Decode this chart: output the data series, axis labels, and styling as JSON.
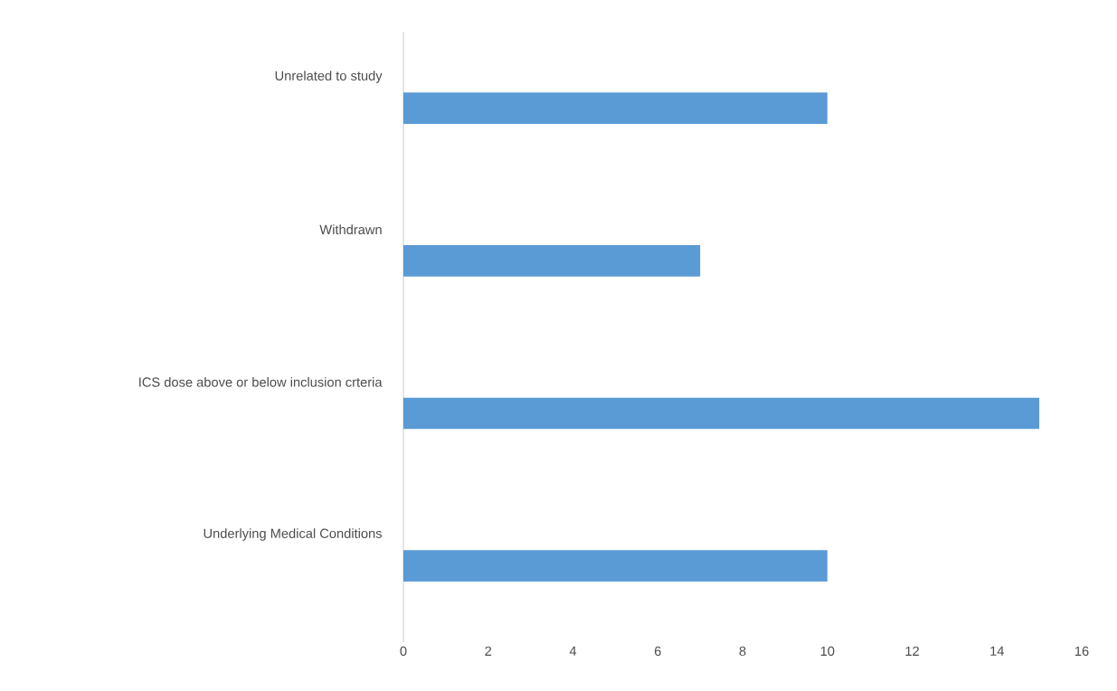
{
  "chart_data": {
    "type": "bar",
    "orientation": "horizontal",
    "categories": [
      "Unrelated to study",
      "Withdrawn",
      "ICS dose above or below inclusion crteria",
      "Underlying Medical Conditions"
    ],
    "values": [
      10,
      7,
      15,
      10
    ],
    "color": "#5b9bd5",
    "xlim": [
      0,
      16
    ],
    "xticks": [
      0,
      2,
      4,
      6,
      8,
      10,
      12,
      14,
      16
    ]
  }
}
